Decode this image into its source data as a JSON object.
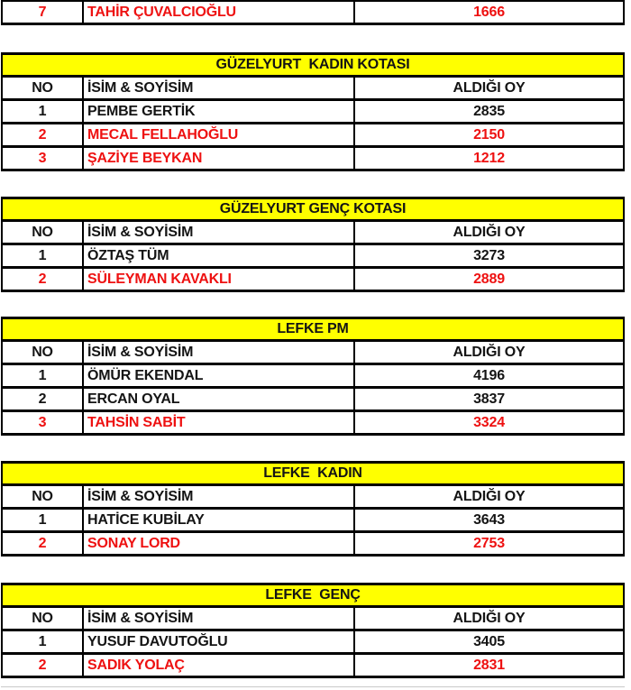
{
  "colors": {
    "title_background": "#ffff00",
    "highlight_red": "#ee1111",
    "text_black": "#141414",
    "border_black": "#000000",
    "page_background": "#ffffff"
  },
  "columns": {
    "no": "NO",
    "name": "İSİM & SOYİSİM",
    "votes": "ALDIĞI OY"
  },
  "partial_row": {
    "no": "7",
    "name": "TAHİR ÇUVALCIOĞLU",
    "votes": "1666",
    "highlighted": true
  },
  "tables": [
    {
      "title": "GÜZELYURT  KADIN KOTASI",
      "rows": [
        {
          "no": "1",
          "name": "PEMBE GERTİK",
          "votes": "2835",
          "highlighted": false
        },
        {
          "no": "2",
          "name": "MECAL FELLAHOĞLU",
          "votes": "2150",
          "highlighted": true
        },
        {
          "no": "3",
          "name": "ŞAZİYE BEYKAN",
          "votes": "1212",
          "highlighted": true
        }
      ]
    },
    {
      "title": "GÜZELYURT GENÇ KOTASI",
      "rows": [
        {
          "no": "1",
          "name": "ÖZTAŞ TÜM",
          "votes": "3273",
          "highlighted": false
        },
        {
          "no": "2",
          "name": "SÜLEYMAN KAVAKLI",
          "votes": "2889",
          "highlighted": true
        }
      ]
    },
    {
      "title": "LEFKE PM",
      "rows": [
        {
          "no": "1",
          "name": "ÖMÜR EKENDAL",
          "votes": "4196",
          "highlighted": false
        },
        {
          "no": "2",
          "name": "ERCAN OYAL",
          "votes": "3837",
          "highlighted": false
        },
        {
          "no": "3",
          "name": "TAHSİN SABİT",
          "votes": "3324",
          "highlighted": true
        }
      ]
    },
    {
      "title": "LEFKE  KADIN",
      "rows": [
        {
          "no": "1",
          "name": "HATİCE KUBİLAY",
          "votes": "3643",
          "highlighted": false
        },
        {
          "no": "2",
          "name": "SONAY LORD",
          "votes": "2753",
          "highlighted": true
        }
      ]
    },
    {
      "title": "LEFKE  GENÇ",
      "rows": [
        {
          "no": "1",
          "name": "YUSUF DAVUTOĞLU",
          "votes": "3405",
          "highlighted": false
        },
        {
          "no": "2",
          "name": "SADIK YOLAÇ",
          "votes": "2831",
          "highlighted": true
        }
      ]
    }
  ]
}
